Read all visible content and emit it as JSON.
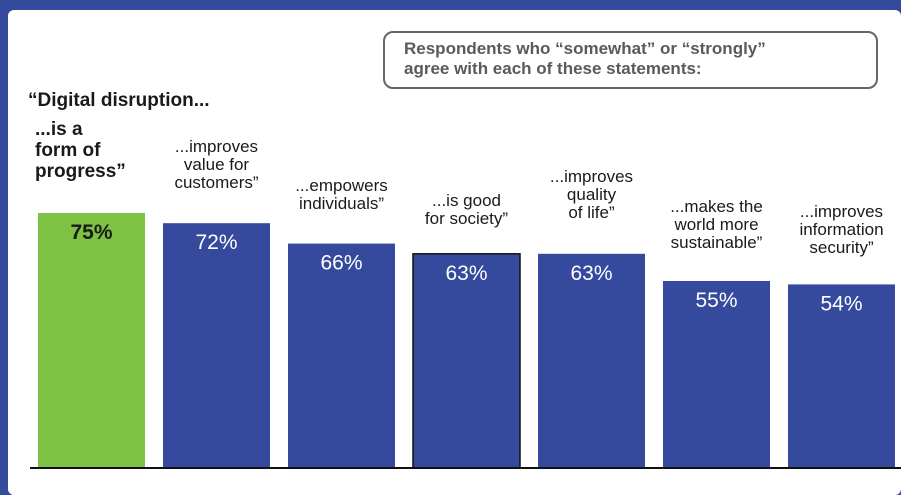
{
  "note": {
    "line1": "Respondents who “somewhat” or “strongly”",
    "line2": "agree with each of these statements:"
  },
  "lead": "“Digital disruption...",
  "chart_data": {
    "type": "bar",
    "categories": [
      "...is a\nform of\nprogress”",
      "...improves\nvalue for\ncustomers”",
      "...empowers\nindividuals”",
      "...is good\nfor society”",
      "...improves\nquality\nof life”",
      "...makes the\nworld more\nsustainable”",
      "...improves\ninformation\nsecurity”"
    ],
    "values": [
      75,
      72,
      66,
      63,
      63,
      55,
      54
    ],
    "labels": [
      "75%",
      "72%",
      "66%",
      "63%",
      "63%",
      "55%",
      "54%"
    ],
    "ylim": [
      0,
      100
    ],
    "colors": {
      "highlight": "#7dc242",
      "bar": "#354a9c",
      "highlight_label": "#1a1a1a",
      "label": "#ffffff"
    }
  }
}
